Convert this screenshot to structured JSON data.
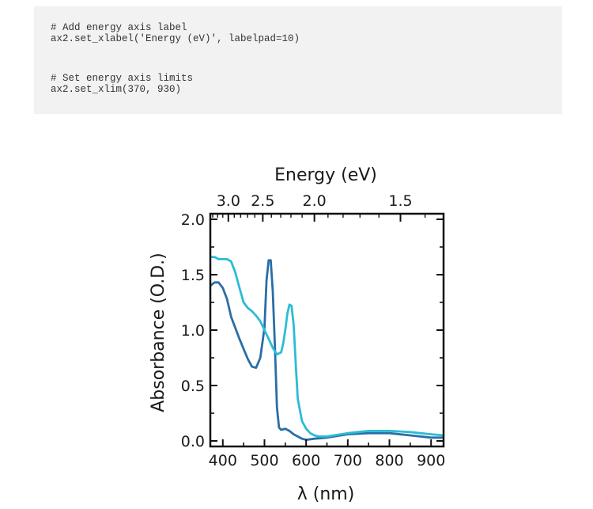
{
  "code_block": {
    "lines": [
      "# Add energy axis label",
      "ax2.set_xlabel('Energy (eV)', labelpad=10)",
      "",
      "",
      "# Set energy axis limits",
      "ax2.set_xlim(370, 930)"
    ]
  },
  "chart_data": {
    "type": "line",
    "xlabel": "λ (nm)",
    "ylabel": "Absorbance (O.D.)",
    "top_xlabel": "Energy (eV)",
    "xlim": [
      370,
      930
    ],
    "ylim": [
      -0.05,
      2.05
    ],
    "x_ticks": [
      400,
      500,
      600,
      700,
      800,
      900
    ],
    "x_tick_labels": [
      "400",
      "500",
      "600",
      "700",
      "800",
      "900"
    ],
    "y_ticks": [
      0.0,
      0.5,
      1.0,
      1.5,
      2.0
    ],
    "y_tick_labels": [
      "0.0",
      "0.5",
      "1.0",
      "1.5",
      "2.0"
    ],
    "top_ticks_eV": [
      3.0,
      2.5,
      2.0,
      1.5
    ],
    "top_tick_labels": [
      "3.0",
      "2.5",
      "2.0",
      "1.5"
    ],
    "grid": false,
    "series": [
      {
        "color": "#2a6ea6",
        "x": [
          370,
          380,
          390,
          400,
          410,
          420,
          430,
          440,
          450,
          460,
          470,
          480,
          490,
          500,
          505,
          510,
          515,
          520,
          525,
          530,
          535,
          540,
          550,
          560,
          570,
          580,
          590,
          600,
          620,
          650,
          700,
          750,
          800,
          850,
          900,
          930
        ],
        "y": [
          1.4,
          1.43,
          1.43,
          1.38,
          1.28,
          1.12,
          1.02,
          0.92,
          0.83,
          0.74,
          0.67,
          0.66,
          0.75,
          1.02,
          1.45,
          1.63,
          1.63,
          1.35,
          0.85,
          0.3,
          0.12,
          0.1,
          0.11,
          0.09,
          0.06,
          0.04,
          0.02,
          0.01,
          0.02,
          0.03,
          0.06,
          0.07,
          0.07,
          0.05,
          0.03,
          0.03
        ]
      },
      {
        "color": "#2bbcd4",
        "x": [
          370,
          380,
          390,
          400,
          410,
          420,
          430,
          440,
          450,
          460,
          470,
          480,
          490,
          500,
          510,
          520,
          530,
          540,
          545,
          550,
          555,
          560,
          565,
          570,
          575,
          580,
          590,
          600,
          610,
          620,
          630,
          650,
          700,
          750,
          800,
          850,
          900,
          930
        ],
        "y": [
          1.66,
          1.66,
          1.64,
          1.64,
          1.64,
          1.62,
          1.52,
          1.38,
          1.25,
          1.2,
          1.17,
          1.13,
          1.08,
          1.0,
          0.92,
          0.84,
          0.78,
          0.8,
          0.88,
          1.0,
          1.15,
          1.23,
          1.22,
          1.05,
          0.7,
          0.38,
          0.18,
          0.11,
          0.07,
          0.05,
          0.04,
          0.04,
          0.07,
          0.09,
          0.09,
          0.08,
          0.06,
          0.05
        ]
      }
    ]
  }
}
